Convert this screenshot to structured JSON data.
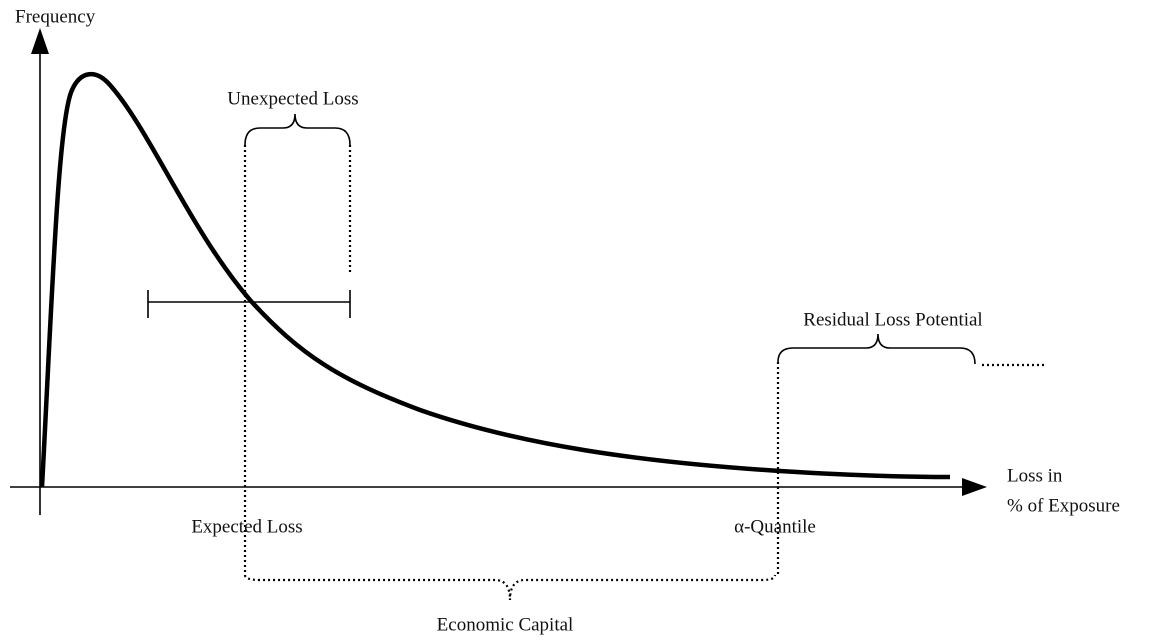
{
  "axes": {
    "y_label": "Frequency",
    "x_label_line1": "Loss in",
    "x_label_line2": "% of Exposure"
  },
  "labels": {
    "unexpected_loss": "Unexpected Loss",
    "residual_loss_potential": "Residual Loss Potential",
    "expected_loss": "Expected Loss",
    "alpha_quantile": "α-Quantile",
    "economic_capital": "Economic Capital"
  }
}
